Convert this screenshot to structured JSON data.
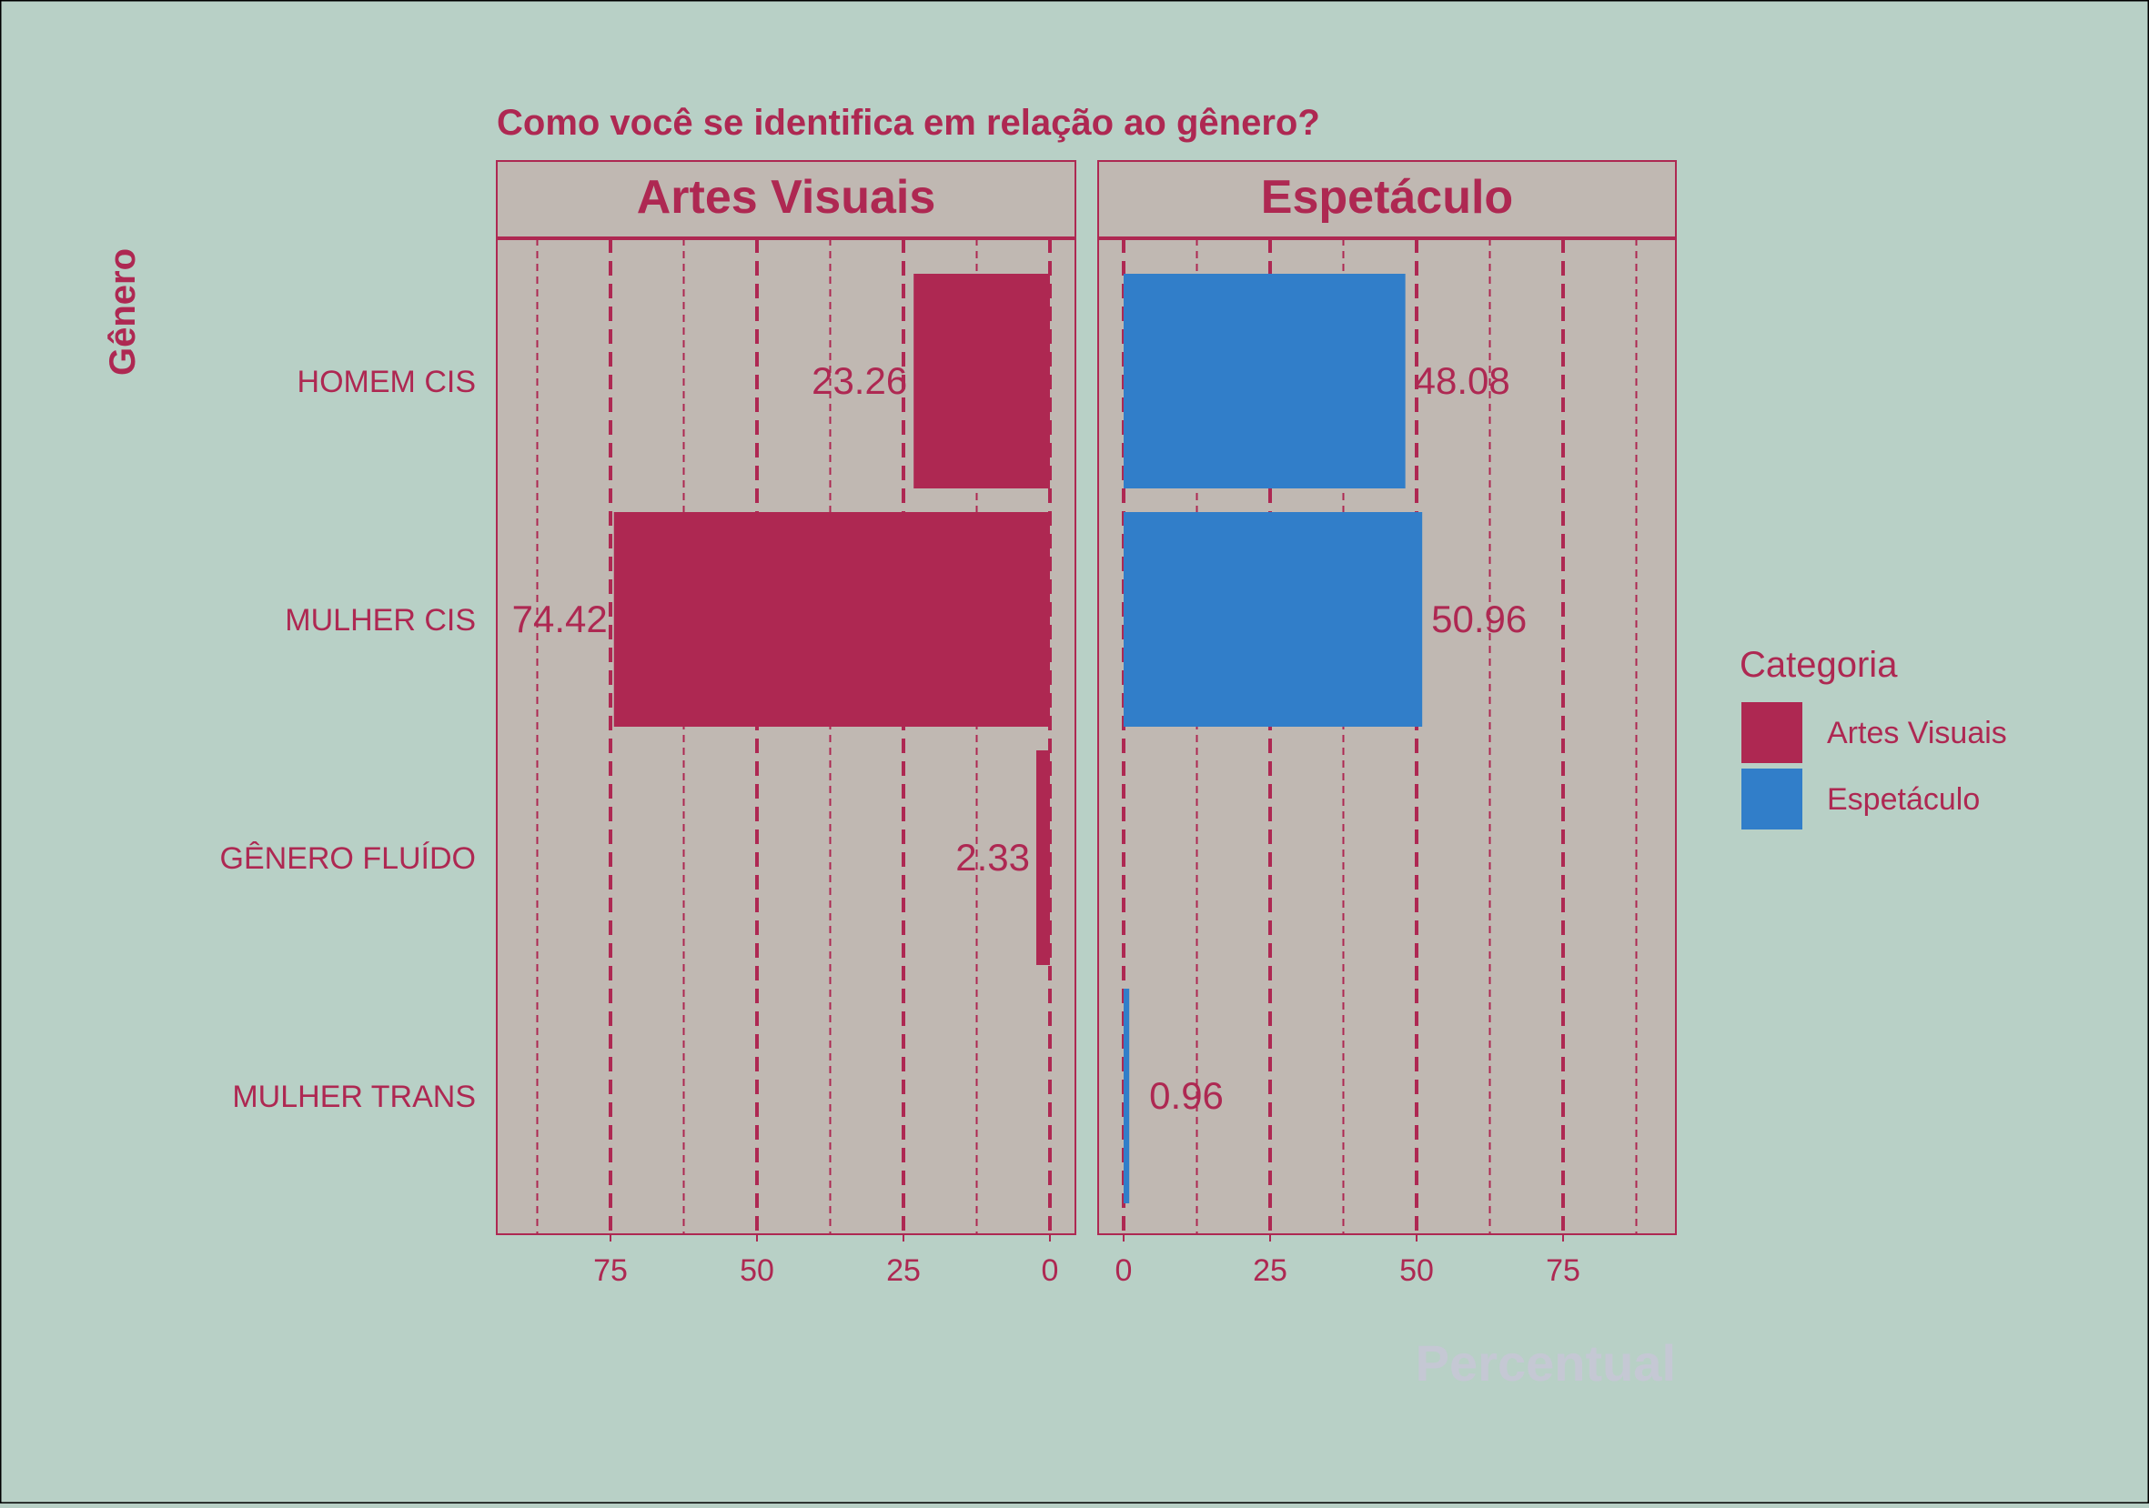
{
  "colors": {
    "background": "#b8d0c6",
    "panel": "#c0b8b2",
    "accent": "#ae2852",
    "artes": "#ae2852",
    "espetaculo": "#317ec9",
    "xlabel": "#c5c8d4"
  },
  "chart_data": {
    "type": "bar",
    "orientation": "horizontal",
    "title": "Como você se identifica em relação ao gênero?",
    "xlabel": "Percentual",
    "ylabel": "Gênero",
    "categories": [
      "HOMEM CIS",
      "MULHER CIS",
      "GÊNERO FLUÍDO",
      "MULHER TRANS"
    ],
    "xlim": [
      0,
      93
    ],
    "x_ticks": [
      75,
      50,
      25,
      0
    ],
    "x_ticks_right": [
      0,
      25,
      50,
      75
    ],
    "grid": true,
    "legend": {
      "title": "Categoria",
      "position": "right",
      "entries": [
        "Artes Visuais",
        "Espetáculo"
      ]
    },
    "panels": [
      {
        "name": "Artes Visuais",
        "direction": "reversed",
        "color": "#ae2852",
        "values": [
          23.26,
          74.42,
          2.33,
          null
        ],
        "labels": [
          "23.26",
          "74.42",
          "2.33",
          ""
        ]
      },
      {
        "name": "Espetáculo",
        "direction": "normal",
        "color": "#317ec9",
        "values": [
          48.08,
          50.96,
          null,
          0.96
        ],
        "labels": [
          "48.08",
          "50.96",
          "",
          "0.96"
        ]
      }
    ]
  }
}
